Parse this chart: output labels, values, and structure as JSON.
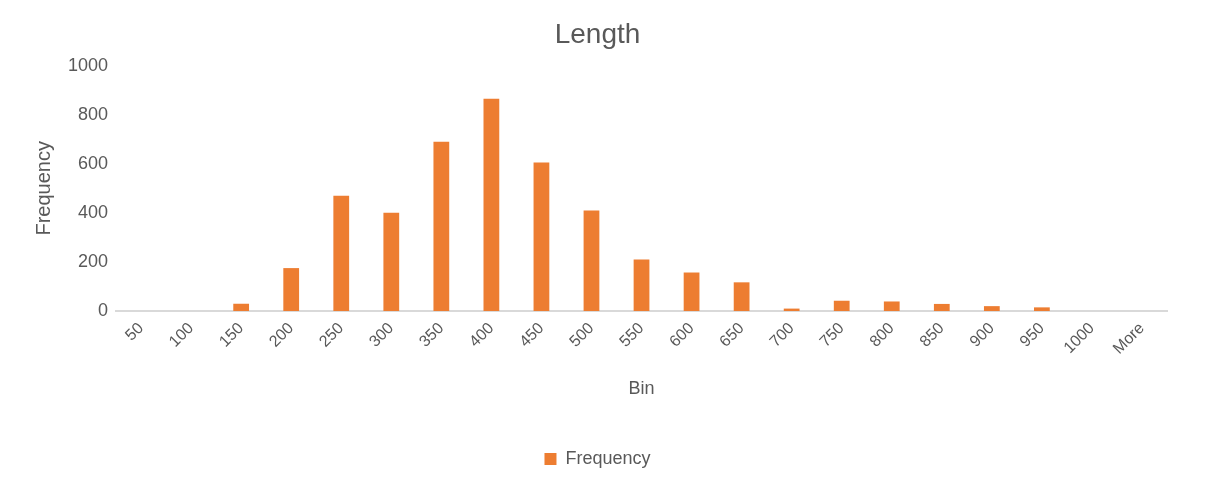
{
  "chart_data": {
    "type": "bar",
    "title": "Length",
    "xlabel": "Bin",
    "ylabel": "Frequency",
    "categories": [
      "50",
      "100",
      "150",
      "200",
      "250",
      "300",
      "350",
      "400",
      "450",
      "500",
      "550",
      "600",
      "650",
      "700",
      "750",
      "800",
      "850",
      "900",
      "950",
      "1000",
      "More"
    ],
    "series": [
      {
        "name": "Frequency",
        "color": "#ed7d31",
        "values": [
          0,
          0,
          30,
          175,
          470,
          400,
          690,
          865,
          605,
          410,
          210,
          157,
          117,
          10,
          42,
          39,
          29,
          20,
          15,
          0,
          0
        ]
      }
    ],
    "ylim": [
      0,
      1000
    ],
    "yticks": [
      0,
      200,
      400,
      600,
      800,
      1000
    ],
    "grid": false,
    "legend": "bottom"
  }
}
